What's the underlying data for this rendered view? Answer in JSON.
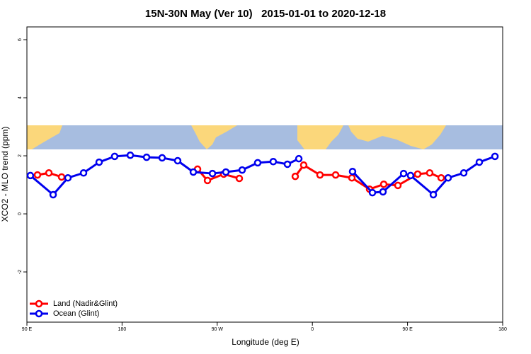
{
  "chart_data": {
    "type": "line",
    "title": "15N-30N May (Ver 10)   2015-01-01 to 2020-12-18",
    "x_label": "Longitude (deg E)",
    "y_label": "XCO2 - MLO trend (ppm)",
    "xlim": [
      90,
      540
    ],
    "ylim": [
      -3.73,
      6.44
    ],
    "xticks": [
      {
        "value": 90,
        "label": "90 E"
      },
      180,
      {
        "value": 270,
        "label": "90 W"
      },
      {
        "value": 360,
        "label": "0"
      },
      {
        "value": 450,
        "label": "90 E"
      },
      {
        "value": 540,
        "label": "180"
      }
    ],
    "yticks": [
      -2,
      0,
      2,
      4,
      6
    ],
    "legend": "bottom-left",
    "series": [
      {
        "name": "Land (Nadir&Glint)",
        "color": "#ff0000",
        "x": [
          100.0,
          110.8,
          122.8,
          null,
          251.4,
          260.8,
          276.2,
          290.9,
          null,
          343.8,
          351.8,
          367.2,
          382.0,
          397.4,
          414.1,
          427.5,
          440.9,
          459.6,
          471.0,
          481.8
        ],
        "values": [
          1.34,
          1.41,
          1.27,
          null,
          1.54,
          1.15,
          1.37,
          1.22,
          null,
          1.29,
          1.68,
          1.34,
          1.34,
          1.24,
          0.85,
          1.02,
          0.98,
          1.37,
          1.41,
          1.24
        ]
      },
      {
        "name": "Ocean (Glint)",
        "color": "#0000ee",
        "x": [
          93.3,
          114.8,
          128.8,
          143.6,
          158.3,
          173.0,
          187.8,
          203.2,
          217.9,
          232.6,
          247.4,
          265.5,
          278.2,
          293.6,
          308.3,
          323.0,
          336.4,
          347.2,
          null,
          398.0,
          416.8,
          426.8,
          446.3,
          452.9,
          474.4,
          488.4,
          503.2,
          517.9,
          532.7
        ],
        "values": [
          1.32,
          0.66,
          1.24,
          1.41,
          1.78,
          1.98,
          2.02,
          1.95,
          1.93,
          1.83,
          1.44,
          1.39,
          1.44,
          1.51,
          1.76,
          1.8,
          1.71,
          1.9,
          null,
          1.46,
          0.73,
          0.76,
          1.39,
          1.32,
          0.66,
          1.24,
          1.41,
          1.78,
          1.98
        ]
      }
    ]
  }
}
